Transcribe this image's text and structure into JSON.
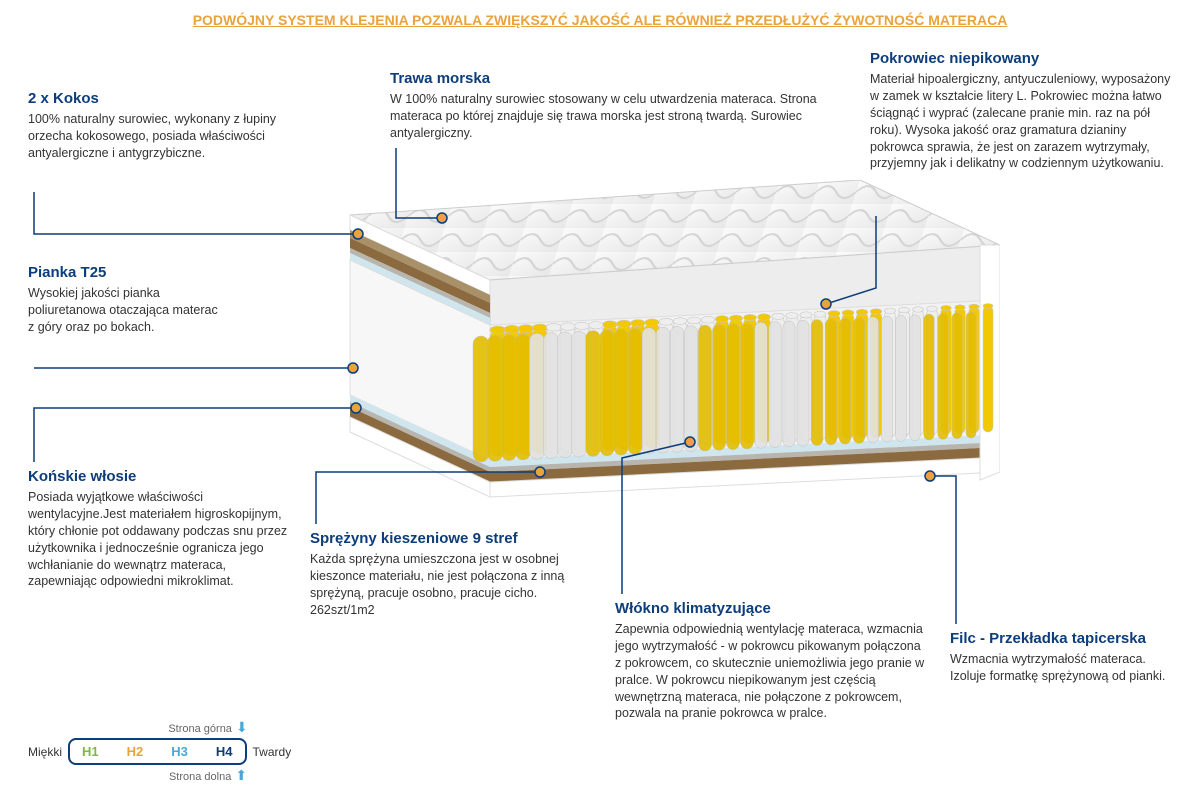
{
  "banner": "PODWÓJNY SYSTEM KLEJENIA POZWALA ZWIĘKSZYĆ JAKOŚĆ ALE RÓWNIEŻ PRZEDŁUŻYĆ ŻYWOTNOŚĆ MATERACA",
  "sections": {
    "kokos": {
      "title": "2 x Kokos",
      "body": "100% naturalny surowiec, wykonany z łupiny orzecha kokosowego, posiada właściwości antyalergiczne i antygrzybiczne."
    },
    "trawa": {
      "title": "Trawa morska",
      "body": "W 100% naturalny surowiec stosowany w celu utwardzenia materaca. Strona materaca po której znajduje się trawa morska jest stroną twardą. Surowiec antyalergiczny."
    },
    "pokrowiec": {
      "title": "Pokrowiec  niepikowany",
      "body": "Materiał hipoalergiczny, antyuczuleniowy, wyposażony w zamek w kształcie litery L. Pokrowiec można łatwo ściągnąć i wyprać (zalecane pranie min.  raz na pół roku). Wysoka jakość oraz gramatura dzianiny pokrowca sprawia, że jest on zarazem wytrzymały, przyjemny jak i delikatny w codziennym użytkowaniu."
    },
    "pianka": {
      "title": "Pianka T25",
      "body": "Wysokiej jakości pianka poliuretanowa otaczająca materac z góry oraz po bokach."
    },
    "konskie": {
      "title": "Końskie włosie",
      "body": "Posiada wyjątkowe właściwości wentylacyjne.Jest materiałem higroskopijnym, który chłonie pot oddawany podczas snu przez użytkownika i jednocześnie ogranicza jego wchłanianie do wewnątrz materaca, zapewniając odpowiedni mikroklimat."
    },
    "sprezyny": {
      "title": "Sprężyny kieszeniowe 9 stref",
      "body": "Każda sprężyna umieszczona jest w osobnej kieszonce materiału, nie jest połączona z inną sprężyną, pracuje osobno, pracuje cicho. 262szt/1m2"
    },
    "wlokno": {
      "title": "Włókno klimatyzujące",
      "body": "Zapewnia odpowiednią wentylację materaca, wzmacnia jego wytrzymałość - w pokrowcu pikowanym połączona z pokrowcem, co skutecznie uniemożliwia jego pranie w pralce. W pokrowcu niepikowanym jest częścią wewnętrzną materaca, nie połączone z pokrowcem, pozwala na pranie pokrowca w pralce."
    },
    "filc": {
      "title": "Filc - Przekładka tapicerska",
      "body": "Wzmacnia wytrzymałość materaca. Izoluje formatkę sprężynową od pianki."
    }
  },
  "firmness": {
    "top": "Strona górna",
    "bottom": "Strona dolna",
    "soft": "Miękki",
    "hard": "Twardy",
    "h1": "H1",
    "h2": "H2",
    "h3": "H3",
    "h4": "H4"
  },
  "colors": {
    "accent": "#0d3d7a",
    "orange": "#e8a33c",
    "spring_yellow": "#f2c800",
    "spring_white": "#eeeeee",
    "cover": "#f6f6f6",
    "coir": "#8b6a3f",
    "seagrass": "#a89068",
    "felt": "#b8b5ae",
    "foam": "#ffffff",
    "climate": "#cfe6ef"
  }
}
